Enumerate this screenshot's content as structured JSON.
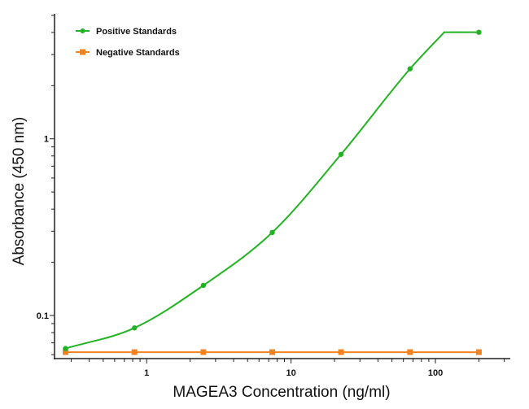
{
  "chart_data": {
    "type": "line",
    "title": "",
    "xlabel": "MAGEA3 Concentration (ng/ml)",
    "ylabel": "Absorbance (450 nm)",
    "x_scale": "log",
    "y_scale": "log",
    "xlim": [
      0.23,
      330
    ],
    "ylim": [
      0.057,
      5.1
    ],
    "x_ticks": [
      {
        "value": 1,
        "label": "1"
      },
      {
        "value": 10,
        "label": "10"
      },
      {
        "value": 100,
        "label": "100"
      }
    ],
    "y_ticks": [
      {
        "value": 0.1,
        "label": "0.1"
      },
      {
        "value": 1,
        "label": "1"
      }
    ],
    "grid": false,
    "legend_position": "top-left",
    "x": [
      0.274,
      0.823,
      2.47,
      7.41,
      22.2,
      66.7,
      200
    ],
    "series": [
      {
        "name": "Positive Standards",
        "color": "#22b322",
        "marker": "circle",
        "curve": "fitted",
        "values": [
          0.065,
          0.085,
          0.148,
          0.295,
          0.817,
          2.49,
          4.01
        ]
      },
      {
        "name": "Negative Standards",
        "color": "#f58220",
        "marker": "square",
        "curve": "straight",
        "values": [
          0.062,
          0.062,
          0.062,
          0.062,
          0.062,
          0.062,
          0.062
        ]
      }
    ]
  }
}
